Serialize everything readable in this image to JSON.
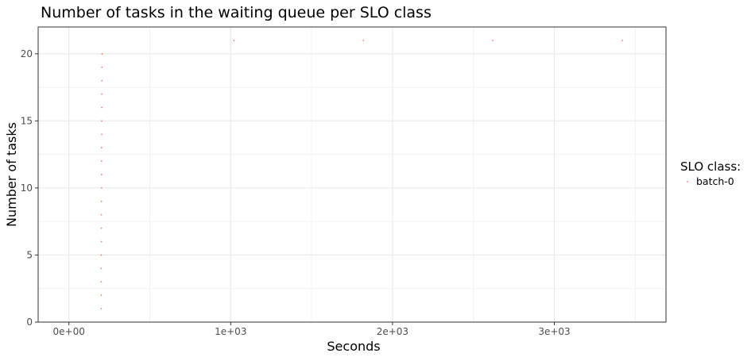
{
  "chart_data": {
    "type": "scatter",
    "title": "Number of tasks in the waiting queue per SLO class",
    "xlabel": "Seconds",
    "ylabel": "Number of tasks",
    "xlim": [
      -190,
      3690
    ],
    "ylim": [
      0,
      22
    ],
    "x_ticks": [
      0,
      1000,
      2000,
      3000
    ],
    "x_tick_labels": [
      "0e+00",
      "1e+03",
      "2e+03",
      "3e+03"
    ],
    "y_ticks": [
      0,
      5,
      10,
      15,
      20
    ],
    "y_tick_labels": [
      "0",
      "5",
      "10",
      "15",
      "20"
    ],
    "grid": true,
    "legend": {
      "title": "SLO class:",
      "position": "right"
    },
    "series": [
      {
        "name": "batch-0",
        "color": "#F8766D",
        "points": [
          {
            "x": 200,
            "y": 1
          },
          {
            "x": 200,
            "y": 2
          },
          {
            "x": 200,
            "y": 3
          },
          {
            "x": 200,
            "y": 4
          },
          {
            "x": 200,
            "y": 5
          },
          {
            "x": 201,
            "y": 6
          },
          {
            "x": 201,
            "y": 7
          },
          {
            "x": 201,
            "y": 8
          },
          {
            "x": 201,
            "y": 9
          },
          {
            "x": 202,
            "y": 10
          },
          {
            "x": 202,
            "y": 11
          },
          {
            "x": 202,
            "y": 12
          },
          {
            "x": 202,
            "y": 13
          },
          {
            "x": 203,
            "y": 14
          },
          {
            "x": 203,
            "y": 15
          },
          {
            "x": 203,
            "y": 16
          },
          {
            "x": 203,
            "y": 17
          },
          {
            "x": 204,
            "y": 18
          },
          {
            "x": 204,
            "y": 19
          },
          {
            "x": 205,
            "y": 20
          },
          {
            "x": 1020,
            "y": 21
          },
          {
            "x": 1820,
            "y": 21
          },
          {
            "x": 2620,
            "y": 21
          },
          {
            "x": 3420,
            "y": 21
          }
        ]
      }
    ]
  }
}
